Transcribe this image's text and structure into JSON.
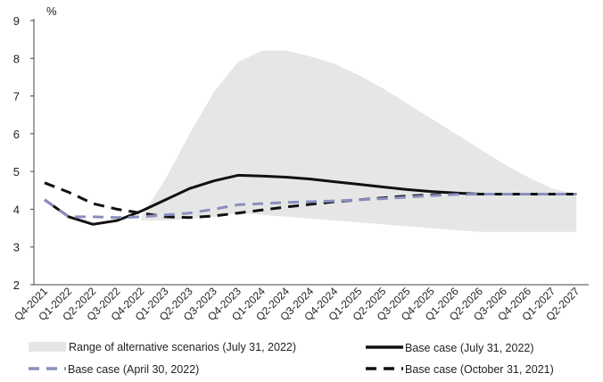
{
  "chart_data": {
    "type": "line",
    "title": "",
    "xlabel": "",
    "ylabel": "%",
    "ylim": [
      2,
      9
    ],
    "yticks": [
      2,
      3,
      4,
      5,
      6,
      7,
      8,
      9
    ],
    "grid": false,
    "legend_position": "bottom",
    "categories": [
      "Q4-2021",
      "Q1-2022",
      "Q2-2022",
      "Q3-2022",
      "Q4-2022",
      "Q1-2023",
      "Q2-2023",
      "Q3-2023",
      "Q4-2023",
      "Q1-2024",
      "Q2-2024",
      "Q3-2024",
      "Q4-2024",
      "Q1-2025",
      "Q2-2025",
      "Q3-2025",
      "Q4-2025",
      "Q1-2026",
      "Q2-2026",
      "Q3-2026",
      "Q4-2026",
      "Q1-2027",
      "Q2-2027"
    ],
    "range": {
      "name": "Range of alternative scenarios (July 31, 2022)",
      "color": "#e6e6e7",
      "start_index": 4,
      "upper": [
        3.8,
        4.8,
        6.0,
        7.1,
        7.9,
        8.2,
        8.2,
        8.05,
        7.85,
        7.55,
        7.2,
        6.8,
        6.4,
        6.0,
        5.6,
        5.2,
        4.85,
        4.55,
        4.4
      ],
      "lower": [
        3.7,
        3.7,
        3.75,
        3.8,
        3.9,
        3.85,
        3.8,
        3.75,
        3.7,
        3.65,
        3.6,
        3.55,
        3.5,
        3.45,
        3.4,
        3.4,
        3.4,
        3.4,
        3.4
      ]
    },
    "series": [
      {
        "name": "Base case (July 31, 2022)",
        "color": "#111111",
        "style": "solid",
        "values": [
          4.25,
          3.8,
          3.6,
          3.7,
          3.95,
          4.25,
          4.55,
          4.75,
          4.9,
          4.88,
          4.85,
          4.8,
          4.73,
          4.66,
          4.59,
          4.52,
          4.47,
          4.43,
          4.4,
          4.4,
          4.4,
          4.4,
          4.4
        ]
      },
      {
        "name": "Base case (April 30, 2022)",
        "color": "#8a8fbd",
        "style": "dashed",
        "values": [
          4.25,
          3.8,
          3.8,
          3.78,
          3.8,
          3.85,
          3.9,
          4.0,
          4.12,
          4.15,
          4.18,
          4.2,
          4.22,
          4.25,
          4.28,
          4.32,
          4.36,
          4.39,
          4.4,
          4.4,
          4.4,
          4.4,
          4.4
        ]
      },
      {
        "name": "Base case (October 31, 2021)",
        "color": "#111111",
        "style": "dashed",
        "values": [
          4.7,
          4.45,
          4.15,
          4.0,
          3.9,
          3.8,
          3.78,
          3.82,
          3.9,
          3.98,
          4.06,
          4.13,
          4.2,
          4.25,
          4.3,
          4.35,
          4.38,
          4.4,
          4.4,
          4.4,
          4.4,
          4.4,
          4.4
        ]
      }
    ]
  }
}
